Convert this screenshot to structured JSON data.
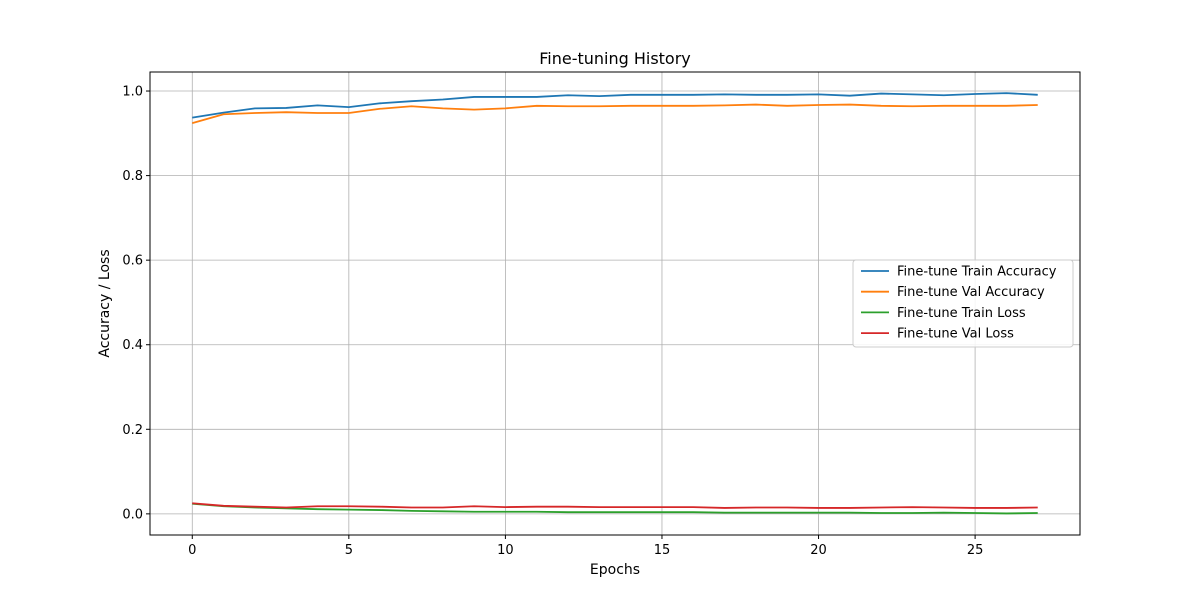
{
  "chart_data": {
    "type": "line",
    "title": "Fine-tuning History",
    "xlabel": "Epochs",
    "ylabel": "Accuracy / Loss",
    "xlim": [
      -1.35,
      28.35
    ],
    "ylim": [
      -0.05,
      1.045
    ],
    "xticks": [
      0,
      5,
      10,
      15,
      20,
      25
    ],
    "yticks": [
      0.0,
      0.2,
      0.4,
      0.6,
      0.8,
      1.0
    ],
    "xtick_labels": [
      "0",
      "5",
      "10",
      "15",
      "20",
      "25"
    ],
    "ytick_labels": [
      "0.0",
      "0.2",
      "0.4",
      "0.6",
      "0.8",
      "1.0"
    ],
    "grid": true,
    "legend_position": "center-right",
    "x": [
      0,
      1,
      2,
      3,
      4,
      5,
      6,
      7,
      8,
      9,
      10,
      11,
      12,
      13,
      14,
      15,
      16,
      17,
      18,
      19,
      20,
      21,
      22,
      23,
      24,
      25,
      26,
      27
    ],
    "series": [
      {
        "name": "Fine-tune Train Accuracy",
        "color": "#1f77b4",
        "values": [
          0.937,
          0.949,
          0.959,
          0.96,
          0.966,
          0.962,
          0.971,
          0.976,
          0.98,
          0.986,
          0.986,
          0.986,
          0.99,
          0.988,
          0.991,
          0.991,
          0.991,
          0.992,
          0.991,
          0.991,
          0.992,
          0.989,
          0.994,
          0.992,
          0.99,
          0.993,
          0.995,
          0.991
        ]
      },
      {
        "name": "Fine-tune Val Accuracy",
        "color": "#ff7f0e",
        "values": [
          0.924,
          0.945,
          0.948,
          0.95,
          0.948,
          0.948,
          0.958,
          0.964,
          0.959,
          0.956,
          0.959,
          0.965,
          0.964,
          0.964,
          0.965,
          0.965,
          0.965,
          0.966,
          0.968,
          0.965,
          0.967,
          0.968,
          0.965,
          0.964,
          0.965,
          0.965,
          0.965,
          0.967
        ]
      },
      {
        "name": "Fine-tune Train Loss",
        "color": "#2ca02c",
        "values": [
          0.024,
          0.018,
          0.015,
          0.013,
          0.011,
          0.01,
          0.009,
          0.007,
          0.006,
          0.005,
          0.005,
          0.005,
          0.004,
          0.004,
          0.004,
          0.004,
          0.004,
          0.003,
          0.003,
          0.003,
          0.003,
          0.003,
          0.002,
          0.002,
          0.003,
          0.002,
          0.001,
          0.002
        ]
      },
      {
        "name": "Fine-tune Val Loss",
        "color": "#d62728",
        "values": [
          0.025,
          0.019,
          0.017,
          0.015,
          0.018,
          0.018,
          0.017,
          0.015,
          0.015,
          0.018,
          0.016,
          0.017,
          0.017,
          0.016,
          0.016,
          0.016,
          0.016,
          0.014,
          0.015,
          0.015,
          0.014,
          0.014,
          0.015,
          0.016,
          0.015,
          0.014,
          0.014,
          0.015
        ]
      }
    ]
  }
}
